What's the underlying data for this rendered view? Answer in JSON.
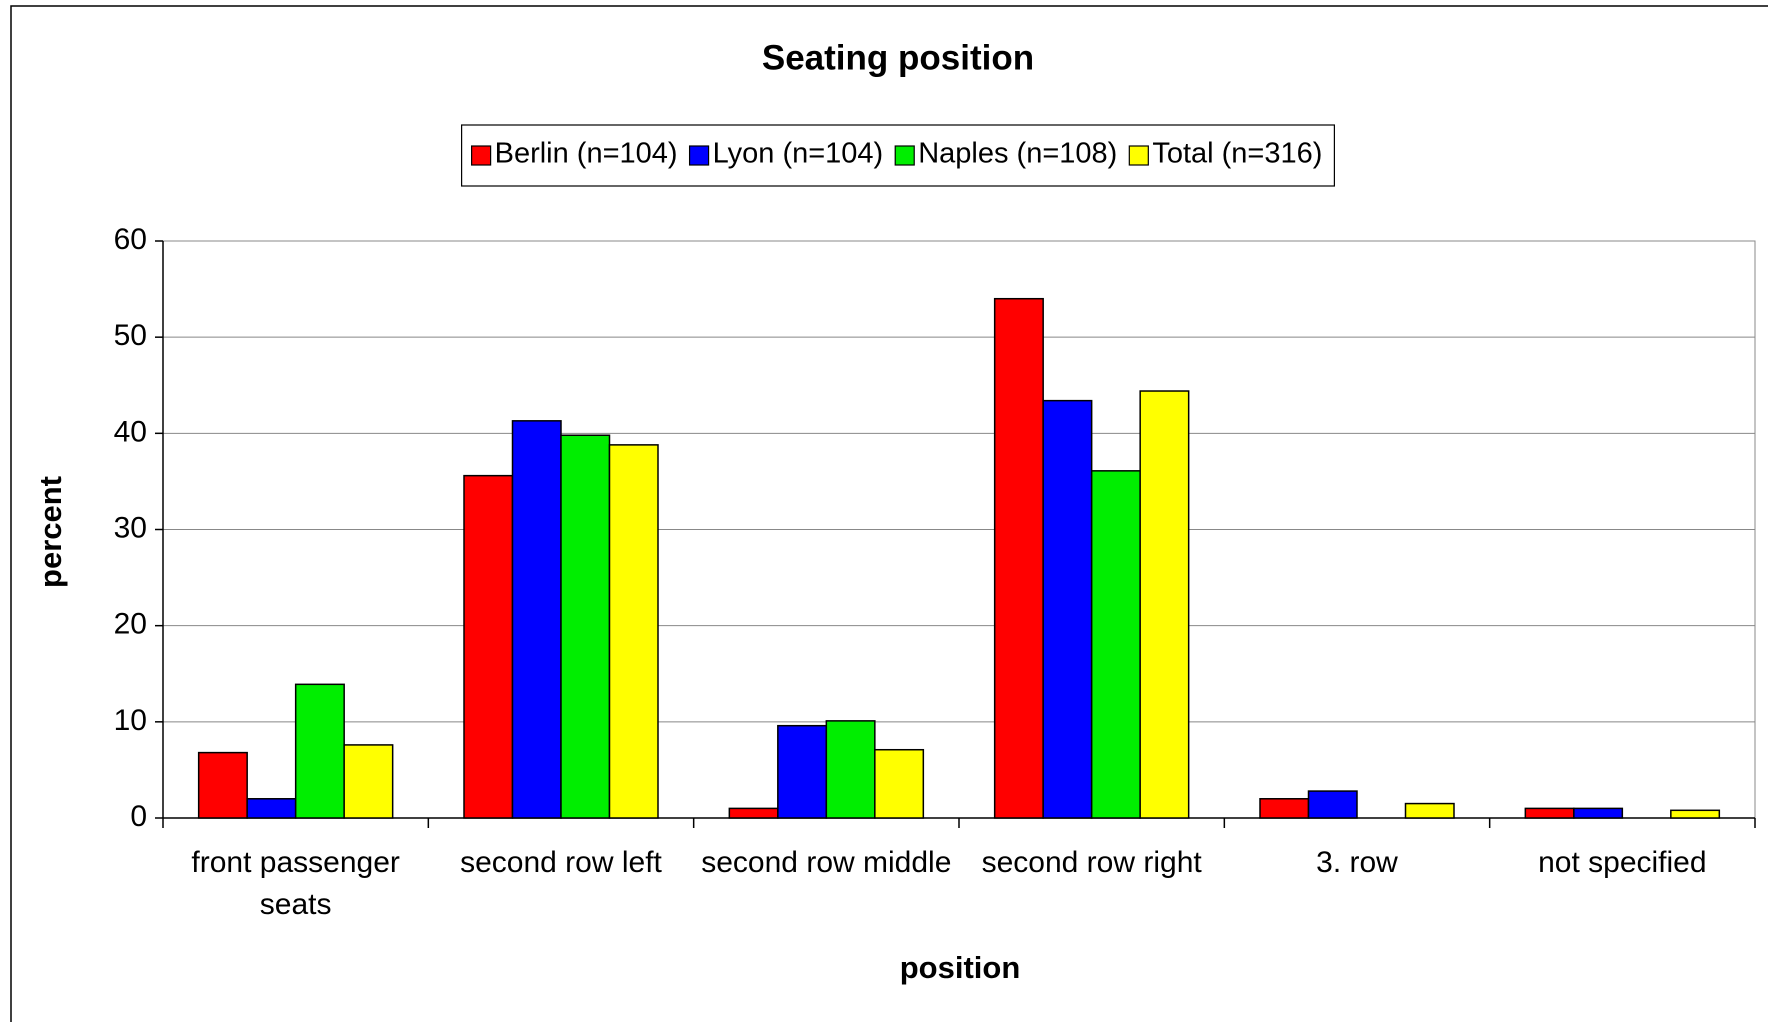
{
  "chart_data": {
    "type": "bar",
    "title": "Seating position",
    "x_label": "position",
    "y_label": "percent",
    "categories": [
      "front passenger seats",
      "second row left",
      "second row middle",
      "second row right",
      "3. row",
      "not specified"
    ],
    "series": [
      {
        "name": "Berlin (n=104)",
        "color": "#ff0000",
        "values": [
          6.8,
          35.6,
          1,
          54,
          2,
          1
        ]
      },
      {
        "name": "Lyon (n=104)",
        "color": "#0000ff",
        "values": [
          2,
          41.3,
          9.6,
          43.4,
          2.8,
          1
        ]
      },
      {
        "name": "Naples (n=108)",
        "color": "#00ee00",
        "values": [
          13.9,
          39.8,
          10.1,
          36.1,
          0,
          0
        ]
      },
      {
        "name": "Total (n=316)",
        "color": "#ffff00",
        "values": [
          7.6,
          38.8,
          7.1,
          44.4,
          1.5,
          0.8
        ]
      }
    ],
    "ylim": [
      0,
      60
    ],
    "yticks": [
      0,
      10,
      20,
      30,
      40,
      50,
      60
    ],
    "grid": true,
    "legend": "top"
  }
}
